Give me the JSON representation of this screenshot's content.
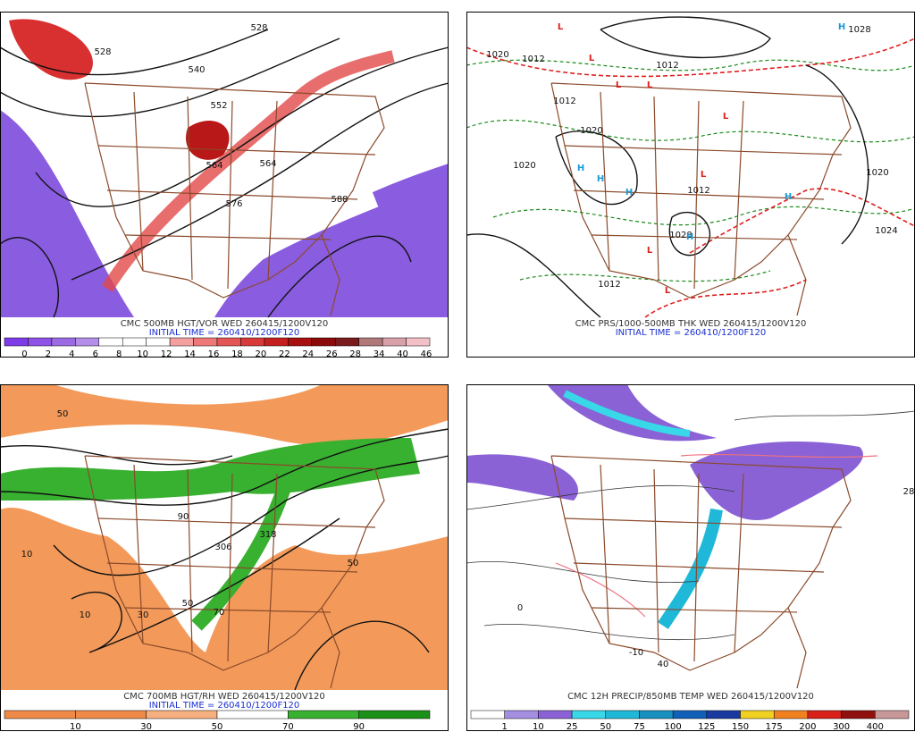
{
  "panels": [
    {
      "caption": "CMC 500MB HGT/VOR WED 260415/1200V120",
      "init": "INITIAL TIME = 260410/1200F120",
      "legend_labels": [
        0,
        2,
        4,
        6,
        8,
        10,
        12,
        14,
        16,
        18,
        20,
        22,
        24,
        26,
        28,
        34,
        40,
        46
      ],
      "legend_colors": [
        "#7d3ce8",
        "#8e52e6",
        "#9c6ae2",
        "#b48ee8",
        "#ffffff",
        "#ffffff",
        "#ffffff",
        "#f4a0a0",
        "#ee7878",
        "#e45656",
        "#d83a3a",
        "#c42020",
        "#a81010",
        "#8c0a0a",
        "#7a1a1a",
        "#b07878",
        "#d8a0a8",
        "#f4c0c8"
      ],
      "contour_labels": [
        "528",
        "540",
        "552",
        "564",
        "564",
        "576",
        "588",
        "528"
      ]
    },
    {
      "caption": "CMC PRS/1000-500MB THK WED 260415/1200V120",
      "init": "INITIAL TIME = 260410/1200F120",
      "contour_labels": [
        "1020",
        "1012",
        "1020",
        "1012",
        "1020",
        "1020",
        "1012",
        "1028",
        "1012",
        "1024",
        "1012",
        "1028"
      ],
      "centers": [
        {
          "label": "L",
          "color": "#e0201c"
        },
        {
          "label": "L",
          "color": "#e0201c"
        },
        {
          "label": "L",
          "color": "#e0201c"
        },
        {
          "label": "L",
          "color": "#e0201c"
        },
        {
          "label": "L",
          "color": "#e0201c"
        },
        {
          "label": "L",
          "color": "#e0201c"
        },
        {
          "label": "L",
          "color": "#e0201c"
        },
        {
          "label": "L",
          "color": "#e0201c"
        },
        {
          "label": "H",
          "color": "#1c9ad8"
        },
        {
          "label": "H",
          "color": "#1c9ad8"
        },
        {
          "label": "H",
          "color": "#1c9ad8"
        },
        {
          "label": "H",
          "color": "#1c9ad8"
        },
        {
          "label": "H",
          "color": "#1c9ad8"
        },
        {
          "label": "H",
          "color": "#1c9ad8"
        }
      ]
    },
    {
      "caption": "CMC 700MB HGT/RH WED 260415/1200V120",
      "init": "INITIAL TIME = 260410/1200F120",
      "legend_labels": [
        10,
        30,
        50,
        70,
        90
      ],
      "legend_colors": [
        "#f08a48",
        "#f08a48",
        "#f6b080",
        "#ffffff",
        "#38b030",
        "#1a9018"
      ],
      "contour_labels": [
        "50",
        "10",
        "30",
        "50",
        "306",
        "318",
        "10",
        "50",
        "90",
        "70"
      ]
    },
    {
      "caption": "CMC 12H PRECIP/850MB TEMP WED 260415/1200V120",
      "legend_labels": [
        1,
        10,
        25,
        50,
        75,
        100,
        125,
        150,
        175,
        200,
        300,
        400
      ],
      "legend_colors": [
        "#ffffff",
        "#a48ee0",
        "#8a62d6",
        "#38d8e8",
        "#20b8d8",
        "#1890c0",
        "#1060b8",
        "#1a3aa0",
        "#f0d020",
        "#f08020",
        "#d82018",
        "#901010",
        "#c89898"
      ],
      "contour_labels": [
        "28",
        "40",
        "-10",
        "0"
      ]
    }
  ]
}
